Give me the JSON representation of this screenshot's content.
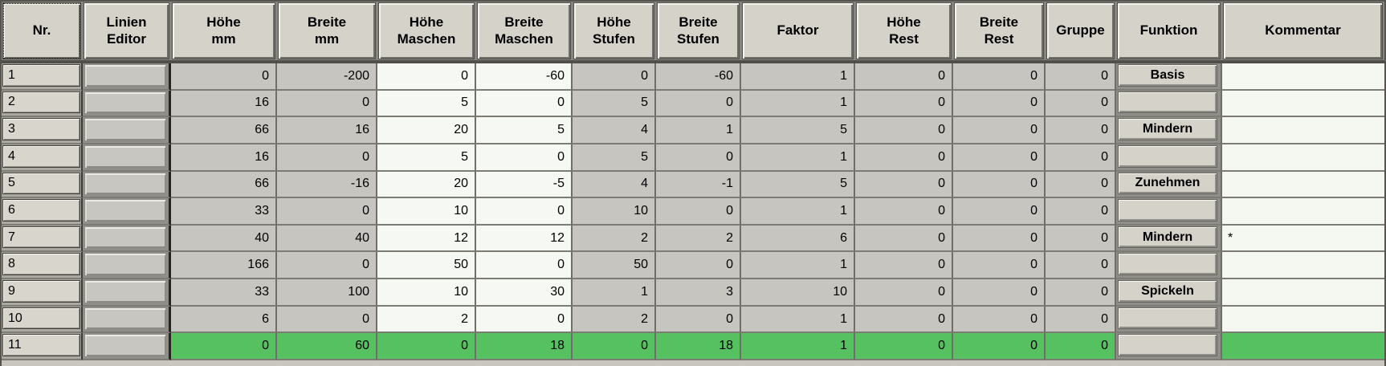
{
  "table": {
    "columns": [
      {
        "key": "nr",
        "label": "Nr.",
        "type": "nr"
      },
      {
        "key": "linien_editor",
        "label": "Linien\nEditor",
        "type": "editor"
      },
      {
        "key": "hoehe_mm",
        "label": "Höhe\nmm",
        "type": "gray"
      },
      {
        "key": "breite_mm",
        "label": "Breite\nmm",
        "type": "gray"
      },
      {
        "key": "hoehe_maschen",
        "label": "Höhe\nMaschen",
        "type": "white"
      },
      {
        "key": "breite_maschen",
        "label": "Breite\nMaschen",
        "type": "white"
      },
      {
        "key": "hoehe_stufen",
        "label": "Höhe\nStufen",
        "type": "gray"
      },
      {
        "key": "breite_stufen",
        "label": "Breite\nStufen",
        "type": "gray"
      },
      {
        "key": "faktor",
        "label": "Faktor",
        "type": "gray"
      },
      {
        "key": "hoehe_rest",
        "label": "Höhe\nRest",
        "type": "gray"
      },
      {
        "key": "breite_rest",
        "label": "Breite\nRest",
        "type": "gray"
      },
      {
        "key": "gruppe",
        "label": "Gruppe",
        "type": "gray"
      },
      {
        "key": "funktion",
        "label": "Funktion",
        "type": "funktion"
      },
      {
        "key": "kommentar",
        "label": "Kommentar",
        "type": "kommentar"
      }
    ],
    "rows": [
      {
        "nr": "1",
        "hoehe_mm": "0",
        "breite_mm": "-200",
        "hoehe_maschen": "0",
        "breite_maschen": "-60",
        "hoehe_stufen": "0",
        "breite_stufen": "-60",
        "faktor": "1",
        "hoehe_rest": "0",
        "breite_rest": "0",
        "gruppe": "0",
        "funktion": "Basis",
        "kommentar": "",
        "highlight": false
      },
      {
        "nr": "2",
        "hoehe_mm": "16",
        "breite_mm": "0",
        "hoehe_maschen": "5",
        "breite_maschen": "0",
        "hoehe_stufen": "5",
        "breite_stufen": "0",
        "faktor": "1",
        "hoehe_rest": "0",
        "breite_rest": "0",
        "gruppe": "0",
        "funktion": "",
        "kommentar": "",
        "highlight": false
      },
      {
        "nr": "3",
        "hoehe_mm": "66",
        "breite_mm": "16",
        "hoehe_maschen": "20",
        "breite_maschen": "5",
        "hoehe_stufen": "4",
        "breite_stufen": "1",
        "faktor": "5",
        "hoehe_rest": "0",
        "breite_rest": "0",
        "gruppe": "0",
        "funktion": "Mindern",
        "kommentar": "",
        "highlight": false
      },
      {
        "nr": "4",
        "hoehe_mm": "16",
        "breite_mm": "0",
        "hoehe_maschen": "5",
        "breite_maschen": "0",
        "hoehe_stufen": "5",
        "breite_stufen": "0",
        "faktor": "1",
        "hoehe_rest": "0",
        "breite_rest": "0",
        "gruppe": "0",
        "funktion": "",
        "kommentar": "",
        "highlight": false
      },
      {
        "nr": "5",
        "hoehe_mm": "66",
        "breite_mm": "-16",
        "hoehe_maschen": "20",
        "breite_maschen": "-5",
        "hoehe_stufen": "4",
        "breite_stufen": "-1",
        "faktor": "5",
        "hoehe_rest": "0",
        "breite_rest": "0",
        "gruppe": "0",
        "funktion": "Zunehmen",
        "kommentar": "",
        "highlight": false
      },
      {
        "nr": "6",
        "hoehe_mm": "33",
        "breite_mm": "0",
        "hoehe_maschen": "10",
        "breite_maschen": "0",
        "hoehe_stufen": "10",
        "breite_stufen": "0",
        "faktor": "1",
        "hoehe_rest": "0",
        "breite_rest": "0",
        "gruppe": "0",
        "funktion": "",
        "kommentar": "",
        "highlight": false
      },
      {
        "nr": "7",
        "hoehe_mm": "40",
        "breite_mm": "40",
        "hoehe_maschen": "12",
        "breite_maschen": "12",
        "hoehe_stufen": "2",
        "breite_stufen": "2",
        "faktor": "6",
        "hoehe_rest": "0",
        "breite_rest": "0",
        "gruppe": "0",
        "funktion": "Mindern",
        "kommentar": "*",
        "highlight": false
      },
      {
        "nr": "8",
        "hoehe_mm": "166",
        "breite_mm": "0",
        "hoehe_maschen": "50",
        "breite_maschen": "0",
        "hoehe_stufen": "50",
        "breite_stufen": "0",
        "faktor": "1",
        "hoehe_rest": "0",
        "breite_rest": "0",
        "gruppe": "0",
        "funktion": "",
        "kommentar": "",
        "highlight": false
      },
      {
        "nr": "9",
        "hoehe_mm": "33",
        "breite_mm": "100",
        "hoehe_maschen": "10",
        "breite_maschen": "30",
        "hoehe_stufen": "1",
        "breite_stufen": "3",
        "faktor": "10",
        "hoehe_rest": "0",
        "breite_rest": "0",
        "gruppe": "0",
        "funktion": "Spickeln",
        "kommentar": "",
        "highlight": false
      },
      {
        "nr": "10",
        "hoehe_mm": "6",
        "breite_mm": "0",
        "hoehe_maschen": "2",
        "breite_maschen": "0",
        "hoehe_stufen": "2",
        "breite_stufen": "0",
        "faktor": "1",
        "hoehe_rest": "0",
        "breite_rest": "0",
        "gruppe": "0",
        "funktion": "",
        "kommentar": "",
        "highlight": false
      },
      {
        "nr": "11",
        "hoehe_mm": "0",
        "breite_mm": "60",
        "hoehe_maschen": "0",
        "breite_maschen": "18",
        "hoehe_stufen": "0",
        "breite_stufen": "18",
        "faktor": "1",
        "hoehe_rest": "0",
        "breite_rest": "0",
        "gruppe": "0",
        "funktion": "",
        "kommentar": "",
        "highlight": true
      }
    ],
    "colors": {
      "highlight_green": "#56c160",
      "cell_gray": "#c7c5c0",
      "cell_white": "#f6f8f3",
      "button_face": "#d5d2c9"
    }
  }
}
